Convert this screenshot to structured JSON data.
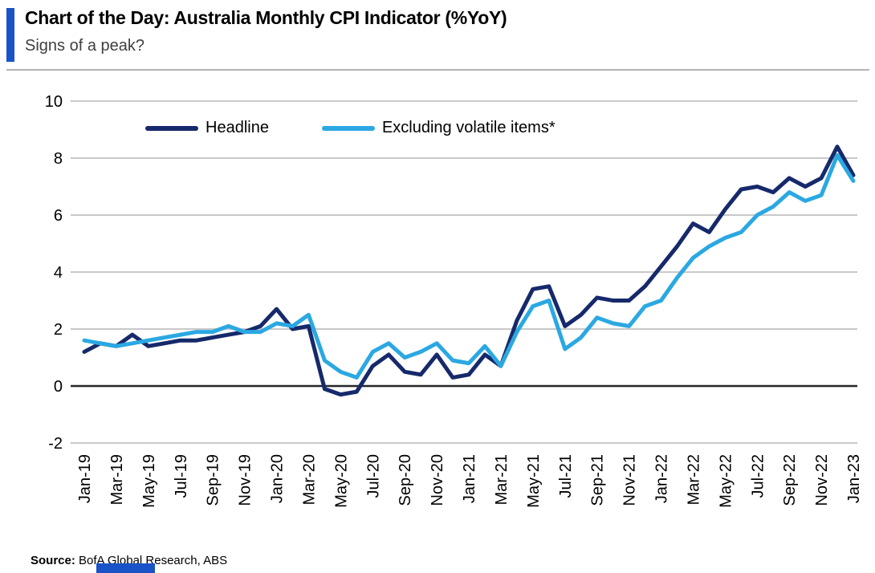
{
  "header": {
    "title": "Chart of the Day: Australia Monthly CPI Indicator (%YoY)",
    "subtitle": "Signs of a peak?",
    "accent_color": "#1a53c8"
  },
  "chart_data": {
    "type": "line",
    "x": [
      "Jan-19",
      "Feb-19",
      "Mar-19",
      "Apr-19",
      "May-19",
      "Jun-19",
      "Jul-19",
      "Aug-19",
      "Sep-19",
      "Oct-19",
      "Nov-19",
      "Dec-19",
      "Jan-20",
      "Feb-20",
      "Mar-20",
      "Apr-20",
      "May-20",
      "Jun-20",
      "Jul-20",
      "Aug-20",
      "Sep-20",
      "Oct-20",
      "Nov-20",
      "Dec-20",
      "Jan-21",
      "Feb-21",
      "Mar-21",
      "Apr-21",
      "May-21",
      "Jun-21",
      "Jul-21",
      "Aug-21",
      "Sep-21",
      "Oct-21",
      "Nov-21",
      "Dec-21",
      "Jan-22",
      "Feb-22",
      "Mar-22",
      "Apr-22",
      "May-22",
      "Jun-22",
      "Jul-22",
      "Aug-22",
      "Sep-22",
      "Oct-22",
      "Nov-22",
      "Dec-22",
      "Jan-23"
    ],
    "x_tick_every": 2,
    "series": [
      {
        "name": "Headline",
        "color": "#16296b",
        "values": [
          1.2,
          1.5,
          1.4,
          1.8,
          1.4,
          1.5,
          1.6,
          1.6,
          1.7,
          1.8,
          1.9,
          2.1,
          2.7,
          2.0,
          2.1,
          -0.1,
          -0.3,
          -0.2,
          0.7,
          1.1,
          0.5,
          0.4,
          1.1,
          0.3,
          0.4,
          1.1,
          0.7,
          2.3,
          3.4,
          3.5,
          2.1,
          2.5,
          3.1,
          3.0,
          3.0,
          3.5,
          4.2,
          4.9,
          5.7,
          5.4,
          6.2,
          6.9,
          7.0,
          6.8,
          7.3,
          7.0,
          7.3,
          8.4,
          7.4
        ]
      },
      {
        "name": "Excluding volatile items*",
        "color": "#2ba8e2",
        "values": [
          1.6,
          1.5,
          1.4,
          1.5,
          1.6,
          1.7,
          1.8,
          1.9,
          1.9,
          2.1,
          1.9,
          1.9,
          2.2,
          2.1,
          2.5,
          0.9,
          0.5,
          0.3,
          1.2,
          1.5,
          1.0,
          1.2,
          1.5,
          0.9,
          0.8,
          1.4,
          0.7,
          1.9,
          2.8,
          3.0,
          1.3,
          1.7,
          2.4,
          2.2,
          2.1,
          2.8,
          3.0,
          3.8,
          4.5,
          4.9,
          5.2,
          5.4,
          6.0,
          6.3,
          6.8,
          6.5,
          6.7,
          8.1,
          7.2
        ]
      }
    ],
    "ylim": [
      -2,
      10
    ],
    "yticks": [
      10,
      8,
      6,
      4,
      2,
      0,
      -2
    ],
    "grid": "horizontal",
    "zero_line": true,
    "legend_position": "top-inside",
    "colors": {
      "gridline": "#c9c9c9",
      "zero_line": "#262626",
      "tick_label": "#000000"
    }
  },
  "footer": {
    "source_label": "Source:",
    "source_text": " BofA Global Research, ABS"
  }
}
